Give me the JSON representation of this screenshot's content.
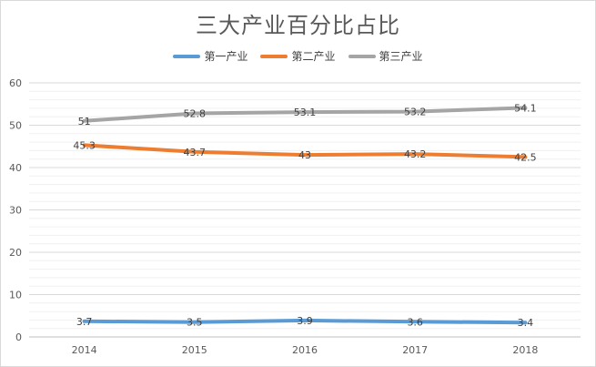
{
  "chart_data": {
    "type": "line",
    "title": "三大产业百分比占比",
    "categories": [
      "2014",
      "2015",
      "2016",
      "2017",
      "2018"
    ],
    "ylim": [
      0,
      60
    ],
    "yticks": [
      0,
      10,
      20,
      30,
      40,
      50,
      60
    ],
    "grid": true,
    "legend_position": "top",
    "series": [
      {
        "name": "第一产业",
        "color": "#5b9bd5",
        "values": [
          3.7,
          3.5,
          3.9,
          3.6,
          3.4
        ]
      },
      {
        "name": "第二产业",
        "color": "#ed7d31",
        "values": [
          45.3,
          43.7,
          43,
          43.2,
          42.5
        ]
      },
      {
        "name": "第三产业",
        "color": "#a5a5a5",
        "values": [
          51,
          52.8,
          53.1,
          53.2,
          54.1
        ]
      }
    ]
  }
}
